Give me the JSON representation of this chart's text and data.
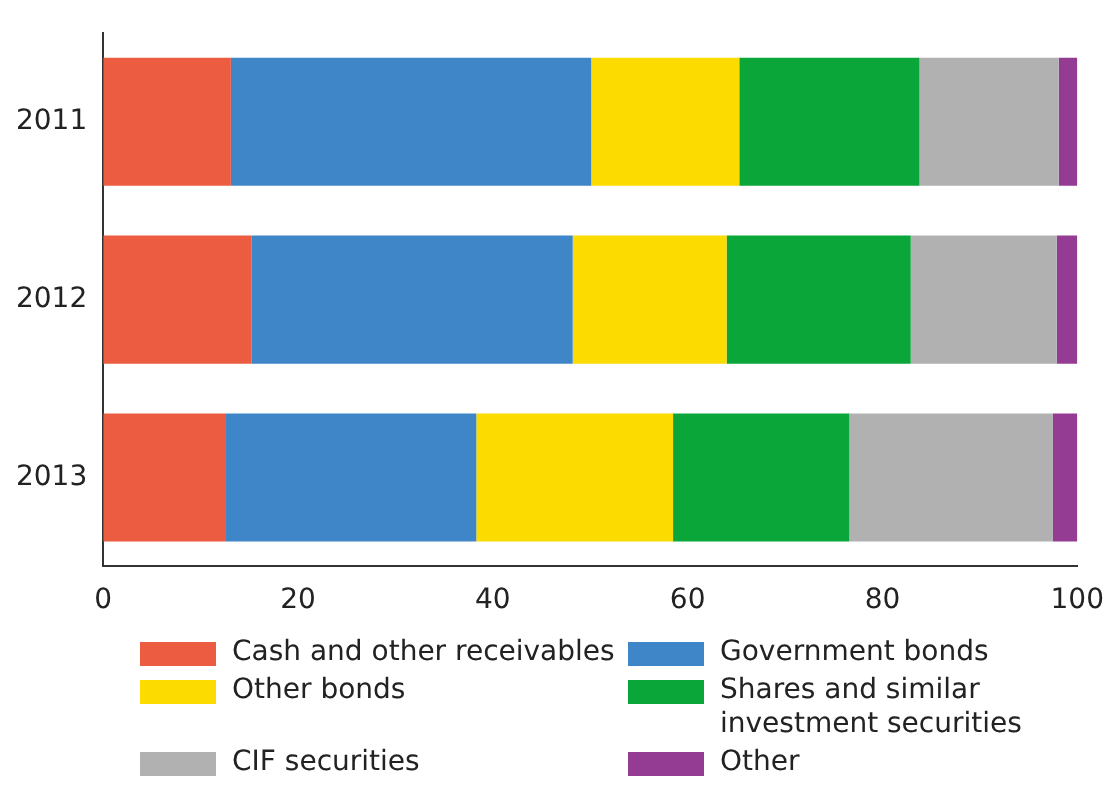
{
  "chart_data": {
    "type": "bar",
    "orientation": "horizontal",
    "stacked": true,
    "categories": [
      "2011",
      "2012",
      "2013"
    ],
    "series": [
      {
        "name": "Cash and other receivables",
        "color": "#eb5c40",
        "values": [
          13.1,
          15.2,
          12.6
        ]
      },
      {
        "name": "Government bonds",
        "color": "#3f86c8",
        "values": [
          37.0,
          33.0,
          25.7
        ]
      },
      {
        "name": "Other bonds",
        "color": "#fcdb00",
        "values": [
          15.2,
          15.8,
          20.2
        ]
      },
      {
        "name": "Shares and similar investment securities",
        "color": "#0aa63a",
        "values": [
          18.5,
          18.9,
          18.1
        ]
      },
      {
        "name": "CIF securities",
        "color": "#b1b1b1",
        "values": [
          14.3,
          15.0,
          20.9
        ]
      },
      {
        "name": "Other",
        "color": "#943b94",
        "values": [
          1.9,
          2.1,
          2.5
        ]
      }
    ],
    "xlim": [
      0,
      100
    ],
    "xticks": [
      0,
      20,
      40,
      60,
      80,
      100
    ],
    "grid": false,
    "legend": "bottom"
  }
}
